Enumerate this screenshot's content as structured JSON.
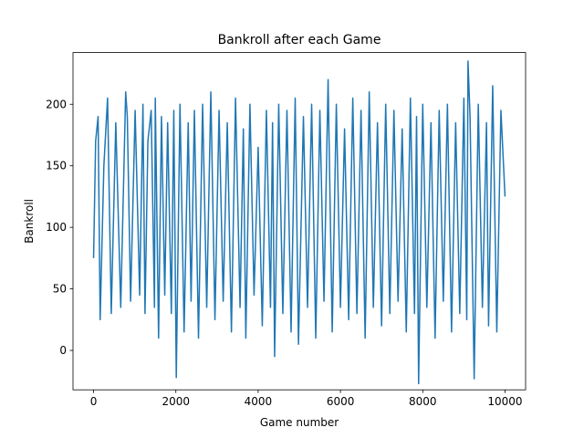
{
  "chart_data": {
    "type": "line",
    "title": "Bankroll after each Game",
    "xlabel": "Game number",
    "ylabel": "Bankroll",
    "xlim": [
      -500,
      10500
    ],
    "ylim": [
      -32,
      242
    ],
    "xticks": [
      0,
      2000,
      4000,
      6000,
      8000,
      10000
    ],
    "yticks": [
      0,
      50,
      100,
      150,
      200
    ],
    "grid": false,
    "legend": "none",
    "series": [
      {
        "color": "#1f77b4",
        "x": [
          0,
          50,
          110,
          160,
          250,
          340,
          430,
          540,
          660,
          780,
          820,
          900,
          1010,
          1120,
          1200,
          1250,
          1320,
          1400,
          1480,
          1500,
          1580,
          1650,
          1730,
          1800,
          1890,
          1950,
          2010,
          2100,
          2200,
          2300,
          2370,
          2450,
          2550,
          2650,
          2750,
          2850,
          2950,
          3050,
          3150,
          3250,
          3350,
          3450,
          3560,
          3640,
          3700,
          3800,
          3900,
          4000,
          4100,
          4200,
          4300,
          4350,
          4400,
          4500,
          4600,
          4700,
          4800,
          4900,
          4980,
          5100,
          5200,
          5300,
          5400,
          5500,
          5600,
          5700,
          5800,
          5900,
          6000,
          6100,
          6200,
          6300,
          6400,
          6500,
          6600,
          6700,
          6800,
          6900,
          7000,
          7100,
          7200,
          7300,
          7400,
          7500,
          7600,
          7700,
          7800,
          7850,
          7900,
          8000,
          8100,
          8200,
          8300,
          8400,
          8500,
          8600,
          8700,
          8800,
          8900,
          9000,
          9070,
          9100,
          9150,
          9250,
          9350,
          9450,
          9550,
          9600,
          9700,
          9800,
          9900,
          10000
        ],
        "y": [
          75,
          170,
          190,
          25,
          150,
          205,
          30,
          185,
          35,
          210,
          190,
          40,
          195,
          45,
          200,
          30,
          170,
          195,
          35,
          205,
          10,
          190,
          45,
          185,
          30,
          195,
          -22,
          200,
          15,
          185,
          40,
          195,
          10,
          200,
          35,
          210,
          25,
          195,
          40,
          185,
          15,
          205,
          35,
          180,
          10,
          200,
          45,
          165,
          20,
          195,
          35,
          185,
          -5,
          200,
          30,
          195,
          15,
          205,
          5,
          190,
          35,
          200,
          10,
          195,
          40,
          220,
          15,
          200,
          35,
          180,
          25,
          205,
          30,
          195,
          10,
          210,
          35,
          185,
          20,
          200,
          30,
          195,
          40,
          180,
          15,
          205,
          30,
          190,
          -27,
          200,
          35,
          185,
          10,
          195,
          40,
          200,
          15,
          185,
          30,
          205,
          25,
          235,
          190,
          -23,
          200,
          35,
          185,
          20,
          215,
          15,
          195,
          125
        ]
      }
    ]
  }
}
